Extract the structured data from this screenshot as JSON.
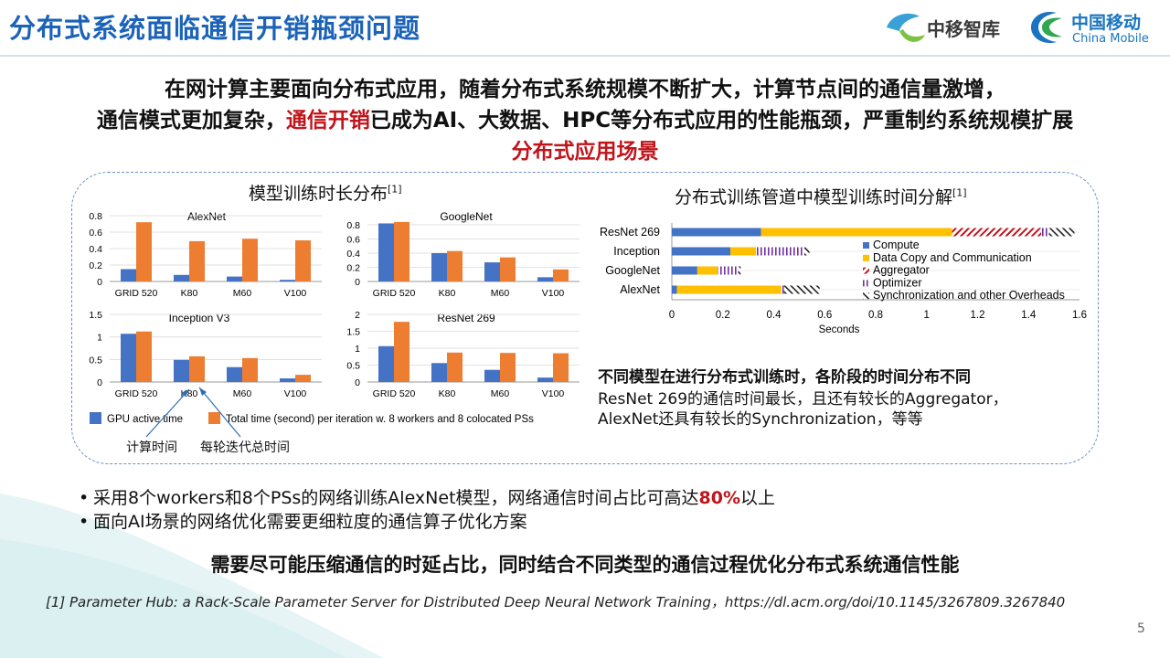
{
  "header": {
    "title": "分布式系统面临通信开销瓶颈问题",
    "logo1_text": "中移智库",
    "logo2_cn": "中国移动",
    "logo2_en": "China Mobile"
  },
  "intro": {
    "line1": "在网计算主要面向分布式应用，随着分布式系统规模不断扩大，计算节点间的通信量激增，",
    "line2_pre": "通信模式更加复杂，",
    "line2_red": "通信开销",
    "line2_post": "已成为AI、大数据、HPC等分布式应用的性能瓶颈，严重制约系统规模扩展",
    "line3": "分布式应用场景"
  },
  "left_panel": {
    "title": "模型训练时长分布",
    "title_ref": "[1]",
    "legend": [
      "GPU active time",
      "Total time (second) per iteration w. 8 workers and 8 colocated PSs"
    ],
    "callout_compute": "计算时间",
    "callout_total": "每轮迭代总时间"
  },
  "right_panel": {
    "title": "分布式训练管道中模型训练时间分解",
    "title_ref": "[1]",
    "xlabel": "Seconds"
  },
  "findings": {
    "bold": "不同模型在进行分布式训练时，各阶段的时间分布不同",
    "line1": "ResNet 269的通信时间最长，且还有较长的Aggregator，",
    "line2": "AlexNet还具有较长的Synchronization，等等"
  },
  "bullets": {
    "b1_pre": "采用8个workers和8个PSs的网络训练AlexNet模型，网络通信时间占比可高达",
    "b1_red": "80%",
    "b1_post": "以上",
    "b2": "面向AI场景的网络优化需要更细粒度的通信算子优化方案"
  },
  "conclusion": "需要尽可能压缩通信的时延占比，同时结合不同类型的通信过程优化分布式系统通信性能",
  "reference": "[1] Parameter Hub: a Rack-Scale Parameter Server for Distributed Deep Neural Network Training，https://dl.acm.org/doi/10.1145/3267809.3267840",
  "page_number": "5",
  "colors": {
    "blue": "#4472c4",
    "orange": "#ed7d31",
    "gold": "#ffc000",
    "red": "#c0141b",
    "title_blue": "#1b63b8"
  },
  "chart_data": [
    {
      "type": "bar",
      "title": "AlexNet",
      "categories": [
        "GRID 520",
        "K80",
        "M60",
        "V100"
      ],
      "series": [
        {
          "name": "GPU active time",
          "values": [
            0.15,
            0.08,
            0.06,
            0.02
          ]
        },
        {
          "name": "Total time (second) per iteration w. 8 workers and 8 colocated PSs",
          "values": [
            0.72,
            0.49,
            0.52,
            0.5
          ]
        }
      ],
      "ylim": [
        0,
        0.8
      ],
      "yticks": [
        "0",
        "0.2",
        "0.4",
        "0.6",
        "0.8"
      ],
      "ytick_values": [
        0,
        0.2,
        0.4,
        0.6,
        0.8
      ]
    },
    {
      "type": "bar",
      "title": "GoogleNet",
      "categories": [
        "GRID 520",
        "K80",
        "M60",
        "V100"
      ],
      "series": [
        {
          "name": "GPU active time",
          "values": [
            0.82,
            0.4,
            0.27,
            0.06
          ]
        },
        {
          "name": "Total time (second) per iteration w. 8 workers and 8 colocated PSs",
          "values": [
            0.84,
            0.43,
            0.34,
            0.17
          ]
        }
      ],
      "ylim": [
        0,
        0.8
      ],
      "yticks": [
        "0",
        "0.2",
        "0.4",
        "0.6",
        "0.8"
      ],
      "ytick_values": [
        0,
        0.2,
        0.4,
        0.6,
        0.8
      ]
    },
    {
      "type": "bar",
      "title": "Inception V3",
      "categories": [
        "GRID 520",
        "K80",
        "M60",
        "V100"
      ],
      "series": [
        {
          "name": "GPU active time",
          "values": [
            1.07,
            0.49,
            0.33,
            0.08
          ]
        },
        {
          "name": "Total time (second) per iteration w. 8 workers and 8 colocated PSs",
          "values": [
            1.12,
            0.57,
            0.53,
            0.16
          ]
        }
      ],
      "ylim": [
        0,
        1.5
      ],
      "yticks": [
        "0",
        "0.5",
        "1",
        "1.5"
      ],
      "ytick_values": [
        0,
        0.5,
        1,
        1.5
      ]
    },
    {
      "type": "bar",
      "title": "ResNet 269",
      "categories": [
        "GRID 520",
        "K80",
        "M60",
        "V100"
      ],
      "series": [
        {
          "name": "GPU active time",
          "values": [
            1.06,
            0.56,
            0.36,
            0.13
          ]
        },
        {
          "name": "Total time (second) per iteration w. 8 workers and 8 colocated PSs",
          "values": [
            1.78,
            0.87,
            0.86,
            0.85
          ]
        }
      ],
      "ylim": [
        0,
        2
      ],
      "yticks": [
        "0",
        "0.5",
        "1",
        "1.5",
        "2"
      ],
      "ytick_values": [
        0,
        0.5,
        1,
        1.5,
        2
      ]
    },
    {
      "type": "bar",
      "orientation": "horizontal",
      "stacked": true,
      "categories": [
        "ResNet 269",
        "Inception",
        "GoogleNet",
        "AlexNet"
      ],
      "series": [
        {
          "name": "Compute",
          "values": [
            0.35,
            0.23,
            0.1,
            0.02
          ]
        },
        {
          "name": "Data Copy and Communication",
          "values": [
            0.75,
            0.1,
            0.08,
            0.41
          ]
        },
        {
          "name": "Aggregator",
          "values": [
            0.35,
            0.0,
            0.0,
            0.0
          ]
        },
        {
          "name": "Optimizer",
          "values": [
            0.03,
            0.19,
            0.08,
            0.01
          ]
        },
        {
          "name": "Synchronization and other Overheads",
          "values": [
            0.1,
            0.02,
            0.01,
            0.14
          ]
        }
      ],
      "xlabel": "Seconds",
      "xlim": [
        0,
        1.6
      ],
      "xticks": [
        "0",
        "0.2",
        "0.4",
        "0.6",
        "0.8",
        "1",
        "1.2",
        "1.4",
        "1.6"
      ],
      "xtick_values": [
        0,
        0.2,
        0.4,
        0.6,
        0.8,
        1,
        1.2,
        1.4,
        1.6
      ],
      "legend_position": "inside-right"
    }
  ]
}
